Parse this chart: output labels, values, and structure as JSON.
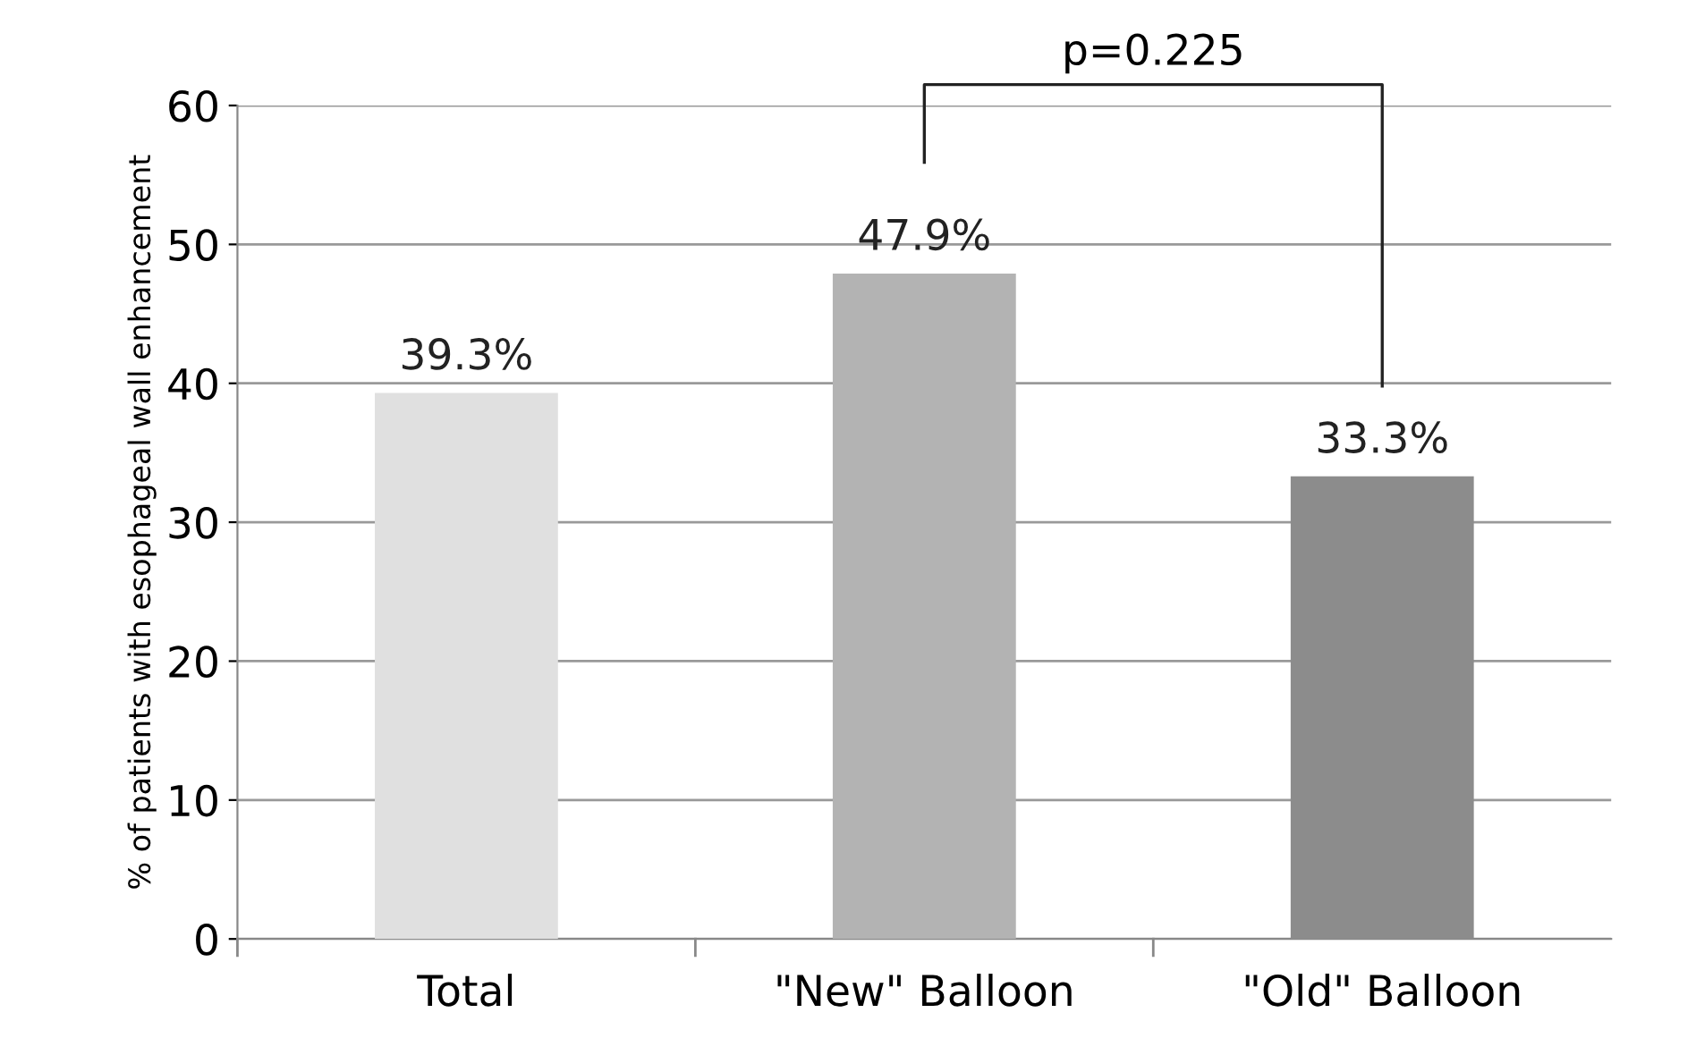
{
  "chart_data": {
    "type": "bar",
    "ylabel": "% of patients with esophageal wall enhancement",
    "categories": [
      "Total",
      "\"New\" Balloon",
      "\"Old\" Balloon"
    ],
    "values": [
      39.3,
      47.9,
      33.3
    ],
    "colors": [
      "#e0e0e0",
      "#b3b3b3",
      "#8c8c8c"
    ],
    "value_labels": [
      "39.3%",
      "47.9%",
      "33.3%"
    ],
    "ylim": [
      0,
      60
    ],
    "yticks": [
      0,
      10,
      20,
      30,
      40,
      50,
      60
    ],
    "grid": "y",
    "annotations": [
      "p=0.225"
    ]
  }
}
